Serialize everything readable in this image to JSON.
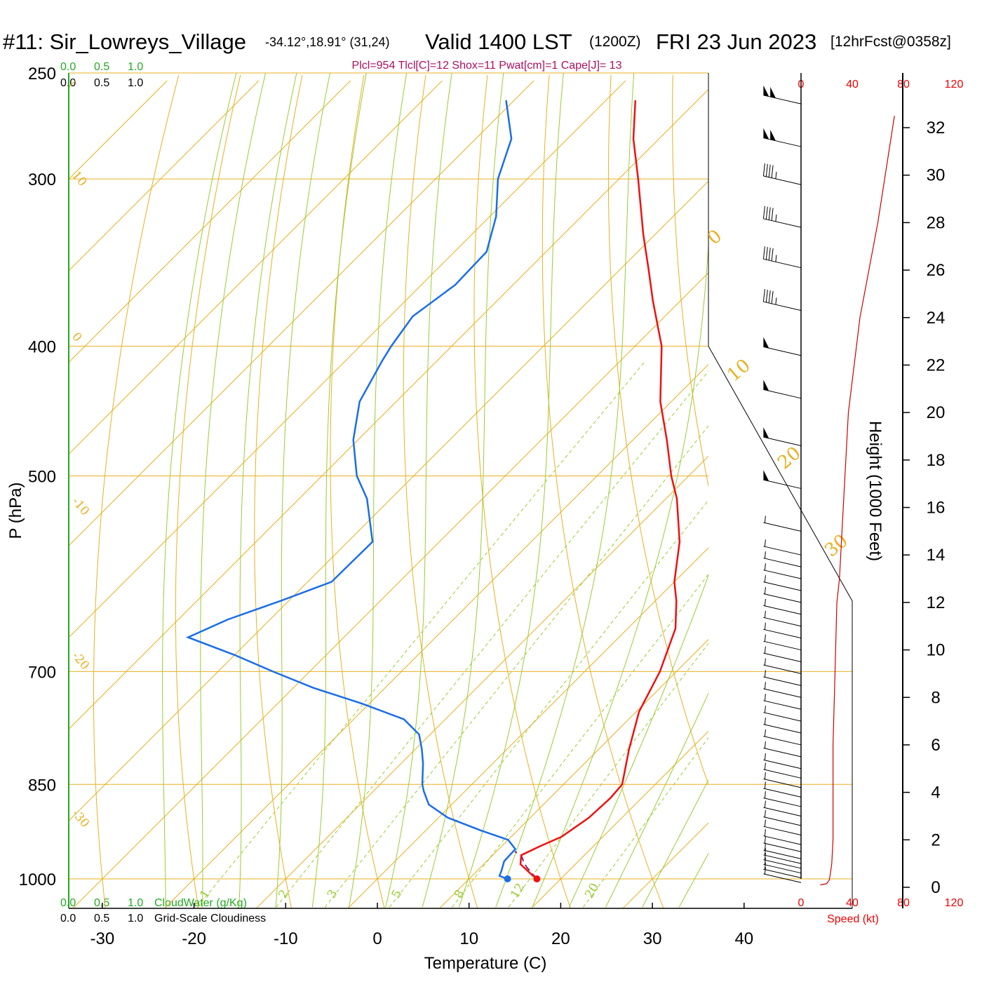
{
  "title": {
    "station": "#11: Sir_Lowreys_Village",
    "coords": "-34.12°,18.91° (31,24)",
    "valid": "Valid 1400 LST",
    "zulu": "(1200Z)",
    "date": "FRI 23 Jun 2023",
    "fcst": "[12hrFcst@0358z]"
  },
  "stats_line": "Plcl=954 Tlcl[C]=12 Shox=11 Pwat[cm]=1 Cape[J]= 13",
  "cloud_scales": {
    "top_green": [
      "0.0",
      "0.5",
      "1.0"
    ],
    "top_black": [
      "0.0",
      "0.5",
      "1.0"
    ],
    "bottom_green": [
      "0.0",
      "0.5",
      "1.0"
    ],
    "bottom_green_label": "CloudWater (g/Kg)",
    "bottom_black": [
      "0.0",
      "0.5",
      "1.0"
    ],
    "bottom_black_label": "Grid-Scale Cloudiness"
  },
  "speed_scale": {
    "top": [
      "0",
      "40",
      "80",
      "120"
    ],
    "bottom": [
      "0",
      "40",
      "80",
      "120"
    ],
    "label": "Speed (kt)"
  },
  "colors": {
    "temperature": "#ee1111",
    "dewpoint": "#1a6ee8",
    "isobar": "#e8b020",
    "adiabat": "#99cc33",
    "speed": "#cc0000",
    "cloud_green": "#22aa22",
    "stats": "#aa1060"
  },
  "chart_data": {
    "type": "skew-t",
    "xlabel": "Temperature (C)",
    "ylabel": "P (hPa)",
    "height_label": "Height (1000 Feet)",
    "temp_ticks": [
      -30,
      -20,
      -10,
      0,
      10,
      20,
      30,
      40
    ],
    "pressure_ticks": [
      250,
      300,
      400,
      500,
      700,
      850,
      1000
    ],
    "height_ticks": [
      0,
      2,
      4,
      6,
      8,
      10,
      12,
      14,
      16,
      18,
      20,
      22,
      24,
      26,
      28,
      30,
      32
    ],
    "isotherm_labels_left": [
      10,
      0,
      -10,
      -20,
      -30
    ],
    "isotherm_labels_right": [
      0,
      10,
      20,
      30
    ],
    "mixing_ratio_labels": [
      "1",
      "2",
      "3",
      "5",
      "8",
      "12",
      "20"
    ],
    "temperature_profile": {
      "name": "Temperature",
      "pressure_hPa": [
        1000,
        990,
        975,
        960,
        945,
        930,
        900,
        870,
        850,
        800,
        750,
        700,
        650,
        620,
        600,
        560,
        520,
        500,
        470,
        440,
        400,
        370,
        350,
        330,
        300,
        280,
        262
      ],
      "temp_C": [
        17.4,
        16.0,
        14.0,
        13.1,
        14.2,
        15.5,
        16.4,
        16.6,
        16.4,
        13.3,
        10.3,
        8.2,
        5.2,
        2.3,
        0.0,
        -3.8,
        -8.8,
        -11.9,
        -16.3,
        -21.2,
        -27.1,
        -33.0,
        -37.0,
        -41.3,
        -47.9,
        -52.8,
        -56.8
      ]
    },
    "dewpoint_profile": {
      "name": "Dewpoint",
      "pressure_hPa": [
        1000,
        995,
        985,
        970,
        950,
        935,
        920,
        900,
        880,
        860,
        850,
        820,
        800,
        780,
        760,
        740,
        720,
        700,
        680,
        660,
        640,
        620,
        600,
        560,
        520,
        500,
        470,
        440,
        410,
        400,
        380,
        360,
        340,
        320,
        300,
        280,
        262
      ],
      "dewpoint_C": [
        14.2,
        13.0,
        12.6,
        11.9,
        11.8,
        10.0,
        6.0,
        1.0,
        -2.5,
        -4.5,
        -5.4,
        -7.6,
        -9.3,
        -11.2,
        -14.5,
        -20.7,
        -27.8,
        -34.0,
        -40.1,
        -47.0,
        -44.6,
        -40.9,
        -37.4,
        -37.3,
        -42.6,
        -46.2,
        -50.5,
        -54.0,
        -56.0,
        -56.6,
        -57.5,
        -56.3,
        -56.5,
        -59.3,
        -63.2,
        -66.1,
        -70.9
      ]
    },
    "parcel_path": {
      "pressure_hPa": [
        1000,
        990,
        980,
        970,
        960,
        954
      ],
      "temp_C": [
        17.4,
        16.2,
        15.0,
        14.0,
        13.1,
        12.0
      ]
    },
    "surface_points": {
      "temp_C": 17.4,
      "dewpoint_C": 14.2,
      "pressure_hPa": 1000
    },
    "wind_speed_profile": {
      "height_kft": [
        0.1,
        0.15,
        0.3,
        0.6,
        1,
        2,
        3,
        4,
        6,
        8,
        10,
        12,
        13,
        16,
        20,
        24,
        28,
        32.5
      ],
      "speed_kt": [
        15,
        20,
        22,
        23,
        24,
        25,
        25,
        25,
        25,
        26,
        27,
        28,
        30,
        33,
        37,
        46,
        60,
        73
      ]
    },
    "wind_barbs": {
      "height_kft": [
        0.2,
        0.4,
        0.6,
        0.8,
        1.0,
        1.2,
        1.5,
        1.8,
        2.2,
        2.6,
        3.0,
        3.4,
        3.8,
        4.2,
        4.6,
        5.0,
        5.5,
        6.0,
        6.5,
        7.0,
        7.5,
        8.0,
        8.5,
        9.0,
        9.5,
        10.0,
        10.5,
        11.0,
        11.5,
        12.0,
        12.5,
        13.0,
        13.5,
        14.0,
        15.0,
        16.8,
        18.6,
        20.6,
        22.4,
        24.3,
        26.1,
        27.8,
        29.6,
        31.2,
        33.0
      ],
      "speed_kt": [
        5,
        5,
        5,
        5,
        5,
        5,
        5,
        5,
        5,
        5,
        5,
        5,
        5,
        5,
        5,
        5,
        5,
        5,
        5,
        5,
        5,
        5,
        5,
        5,
        5,
        5,
        5,
        5,
        5,
        5,
        5,
        5,
        5,
        5,
        5,
        50,
        50,
        50,
        50,
        45,
        45,
        45,
        45,
        100,
        100
      ]
    }
  }
}
